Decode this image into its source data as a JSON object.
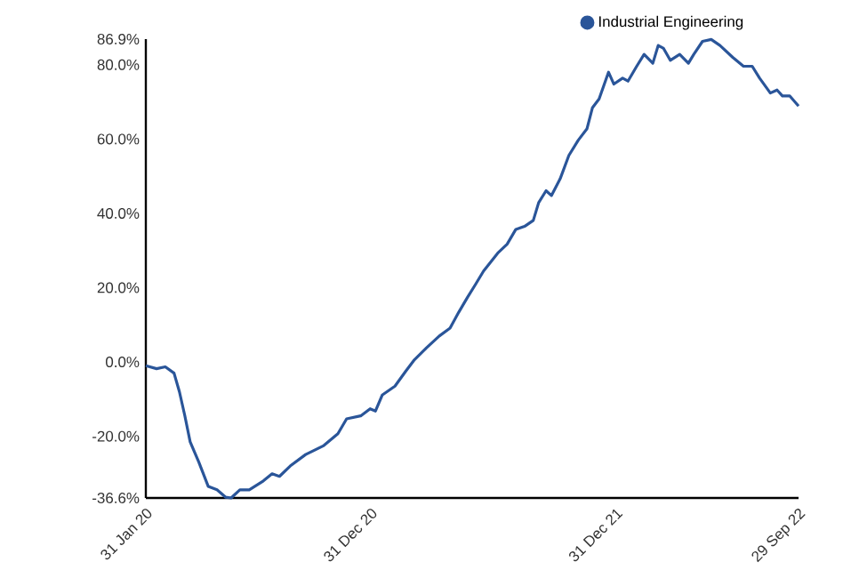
{
  "chart_data": {
    "type": "line",
    "xlim": [
      "2020-01-31",
      "2022-09-29"
    ],
    "xticks": [
      {
        "value": "2020-01-31",
        "label": "31 Jan 20"
      },
      {
        "value": "2020-12-31",
        "label": "31 Dec 20"
      },
      {
        "value": "2021-12-31",
        "label": "31 Dec 21"
      },
      {
        "value": "2022-09-29",
        "label": "29 Sep 22"
      }
    ],
    "ylim": [
      -36.6,
      86.9
    ],
    "yticks": [
      {
        "value": -36.6,
        "label": "-36.6%"
      },
      {
        "value": -20,
        "label": "-20.0%"
      },
      {
        "value": 0,
        "label": "0.0%"
      },
      {
        "value": 20,
        "label": "20.0%"
      },
      {
        "value": 40,
        "label": "40.0%"
      },
      {
        "value": 60,
        "label": "60.0%"
      },
      {
        "value": 80,
        "label": "80.0%"
      },
      {
        "value": 86.9,
        "label": "86.9%"
      }
    ],
    "legend": "top right",
    "marker": "none",
    "line_style": "solid",
    "grid": false,
    "series": [
      {
        "name": "Industrial Engineering",
        "color": "#2a5599",
        "x": [
          "2020-01-31",
          "2020-02-16",
          "2020-02-29",
          "2020-03-13",
          "2020-03-21",
          "2020-03-29",
          "2020-04-06",
          "2020-04-19",
          "2020-05-03",
          "2020-05-16",
          "2020-05-29",
          "2020-06-06",
          "2020-06-19",
          "2020-07-03",
          "2020-07-24",
          "2020-08-06",
          "2020-08-17",
          "2020-09-02",
          "2020-09-25",
          "2020-10-22",
          "2020-11-12",
          "2020-11-25",
          "2020-12-16",
          "2020-12-30",
          "2021-01-07",
          "2021-01-17",
          "2021-02-05",
          "2021-02-21",
          "2021-03-06",
          "2021-03-24",
          "2021-04-12",
          "2021-04-28",
          "2021-05-11",
          "2021-05-24",
          "2021-06-04",
          "2021-06-17",
          "2021-07-08",
          "2021-07-22",
          "2021-08-04",
          "2021-08-17",
          "2021-08-30",
          "2021-09-07",
          "2021-09-18",
          "2021-09-26",
          "2021-10-09",
          "2021-10-22",
          "2021-11-05",
          "2021-11-18",
          "2021-11-26",
          "2021-12-06",
          "2021-12-20",
          "2021-12-28",
          "2022-01-10",
          "2022-01-18",
          "2022-01-31",
          "2022-02-11",
          "2022-02-24",
          "2022-03-04",
          "2022-03-12",
          "2022-03-22",
          "2022-04-05",
          "2022-04-18",
          "2022-04-26",
          "2022-05-09",
          "2022-05-22",
          "2022-06-04",
          "2022-06-23",
          "2022-07-09",
          "2022-07-22",
          "2022-08-02",
          "2022-08-18",
          "2022-08-28",
          "2022-09-05",
          "2022-09-16",
          "2022-09-29"
        ],
        "values": [
          -1,
          -1.8,
          -1.3,
          -3,
          -8,
          -14.4,
          -21.5,
          -27,
          -33.5,
          -34.4,
          -36.4,
          -36.6,
          -34.4,
          -34.4,
          -32,
          -30.1,
          -30.8,
          -28,
          -24.9,
          -22.5,
          -19.3,
          -15.3,
          -14.5,
          -12.6,
          -13.2,
          -8.9,
          -6.5,
          -2.5,
          0.6,
          3.8,
          7,
          9.1,
          13.4,
          17.4,
          20.6,
          24.5,
          29.3,
          31.7,
          35.7,
          36.5,
          38.1,
          42.9,
          46.1,
          44.8,
          49.3,
          55.6,
          59.7,
          62.8,
          68.4,
          70.8,
          78,
          74.8,
          76.4,
          75.6,
          79.6,
          82.8,
          80.4,
          85.2,
          84.4,
          81.2,
          82.8,
          80.4,
          82.8,
          86.3,
          86.8,
          85.2,
          82,
          79.6,
          79.6,
          76.4,
          72.4,
          73.2,
          71.6,
          71.6,
          68.9
        ]
      }
    ]
  }
}
